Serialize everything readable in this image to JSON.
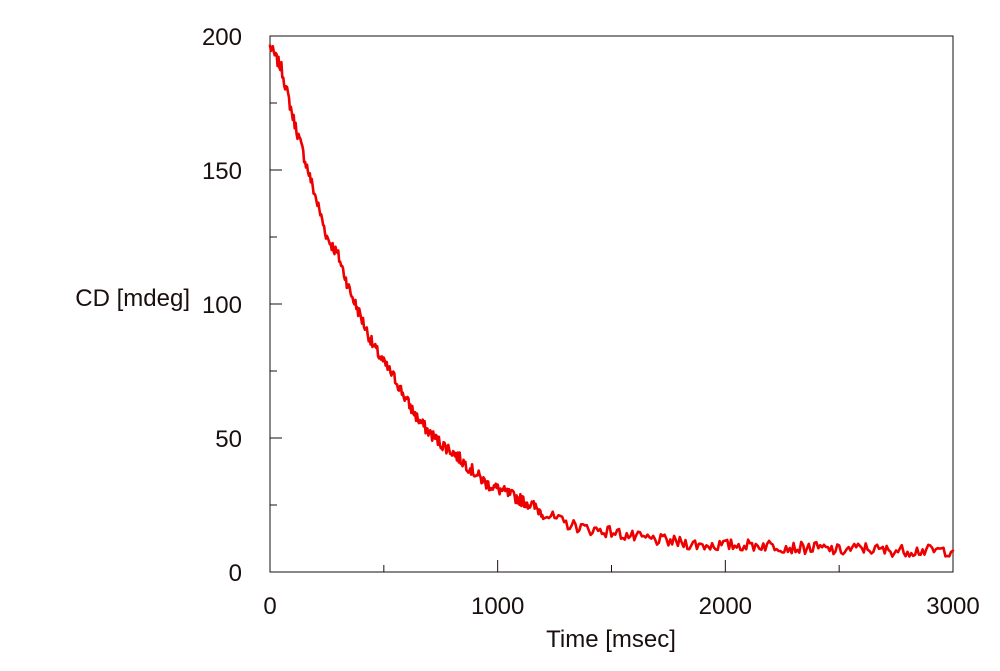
{
  "chart_data": {
    "type": "line",
    "title": "",
    "xlabel": "Time [msec]",
    "ylabel": "CD [mdeg]",
    "xlim": [
      0,
      3000
    ],
    "ylim": [
      0,
      200
    ],
    "x_ticks": [
      0,
      1000,
      2000,
      3000
    ],
    "y_ticks": [
      0,
      50,
      100,
      150,
      200
    ],
    "x_minor_ticks": [
      500,
      1500,
      2500
    ],
    "y_minor_ticks": [
      25,
      75,
      125,
      175
    ],
    "grid": false,
    "legend": "none",
    "series": [
      {
        "color": "#ee0000",
        "x": [
          0,
          50,
          100,
          150,
          200,
          250,
          300,
          350,
          400,
          450,
          500,
          550,
          600,
          650,
          700,
          750,
          800,
          850,
          900,
          950,
          1000,
          1050,
          1100,
          1150,
          1200,
          1300,
          1400,
          1500,
          1600,
          1700,
          1800,
          1900,
          2000,
          2100,
          2200,
          2300,
          2400,
          2500,
          2600,
          2700,
          2800,
          2900,
          3000
        ],
        "y": [
          196,
          188,
          170,
          155,
          140,
          125,
          118,
          105,
          95,
          85,
          78,
          72,
          64,
          57,
          52,
          48,
          45,
          41,
          37,
          33,
          31,
          29,
          27,
          25,
          22,
          18,
          16,
          15,
          13,
          12,
          11,
          10,
          10,
          10,
          10,
          9,
          9,
          8,
          9,
          8,
          8,
          8,
          8
        ]
      }
    ]
  }
}
